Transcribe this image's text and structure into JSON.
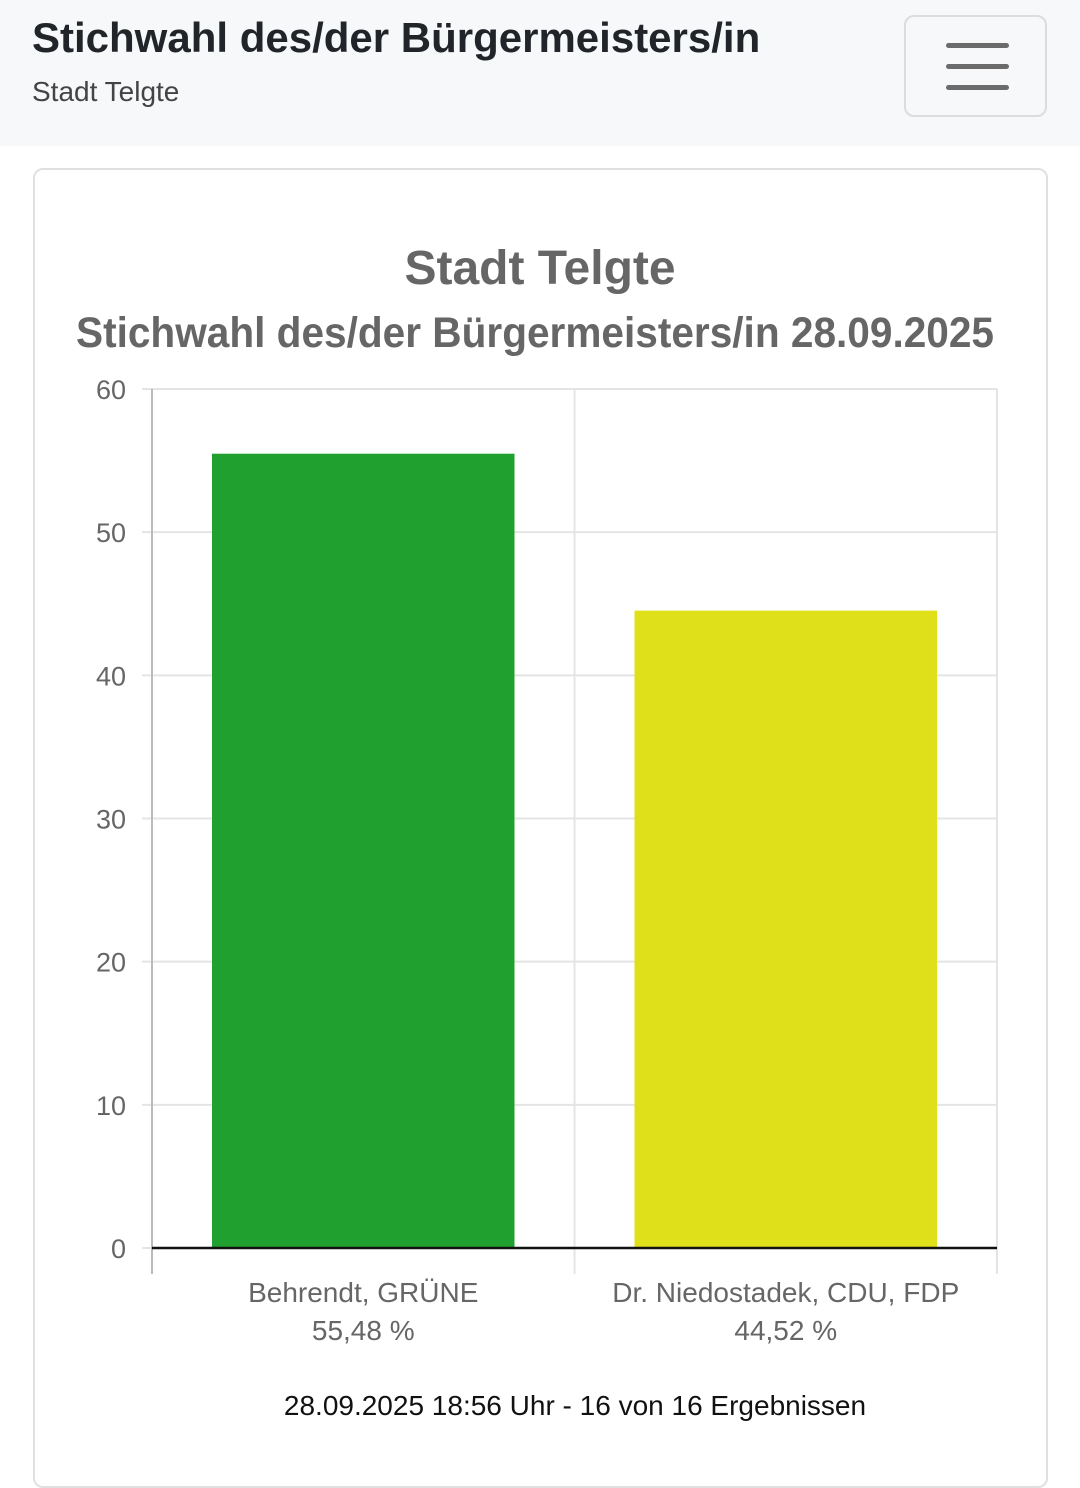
{
  "header": {
    "title": "Stichwahl des/der Bürgermeisters/in",
    "subtitle": "Stadt Telgte",
    "menu_icon": "hamburger-icon"
  },
  "chart_data": {
    "type": "bar",
    "title": "Stadt Telgte",
    "subtitle": "Stichwahl des/der Bürgermeisters/in 28.09.2025",
    "categories": [
      "Behrendt, GRÜNE",
      "Dr. Niedostadek, CDU, FDP"
    ],
    "value_labels": [
      "55,48 %",
      "44,52 %"
    ],
    "values": [
      55.48,
      44.52
    ],
    "colors": [
      "#20a02e",
      "#dfe01a"
    ],
    "ylim": [
      0,
      60
    ],
    "yticks": [
      0,
      10,
      20,
      30,
      40,
      50,
      60
    ],
    "grid": true,
    "xlabel": "",
    "ylabel": ""
  },
  "footer": "28.09.2025 18:56 Uhr - 16 von 16 Ergebnissen"
}
